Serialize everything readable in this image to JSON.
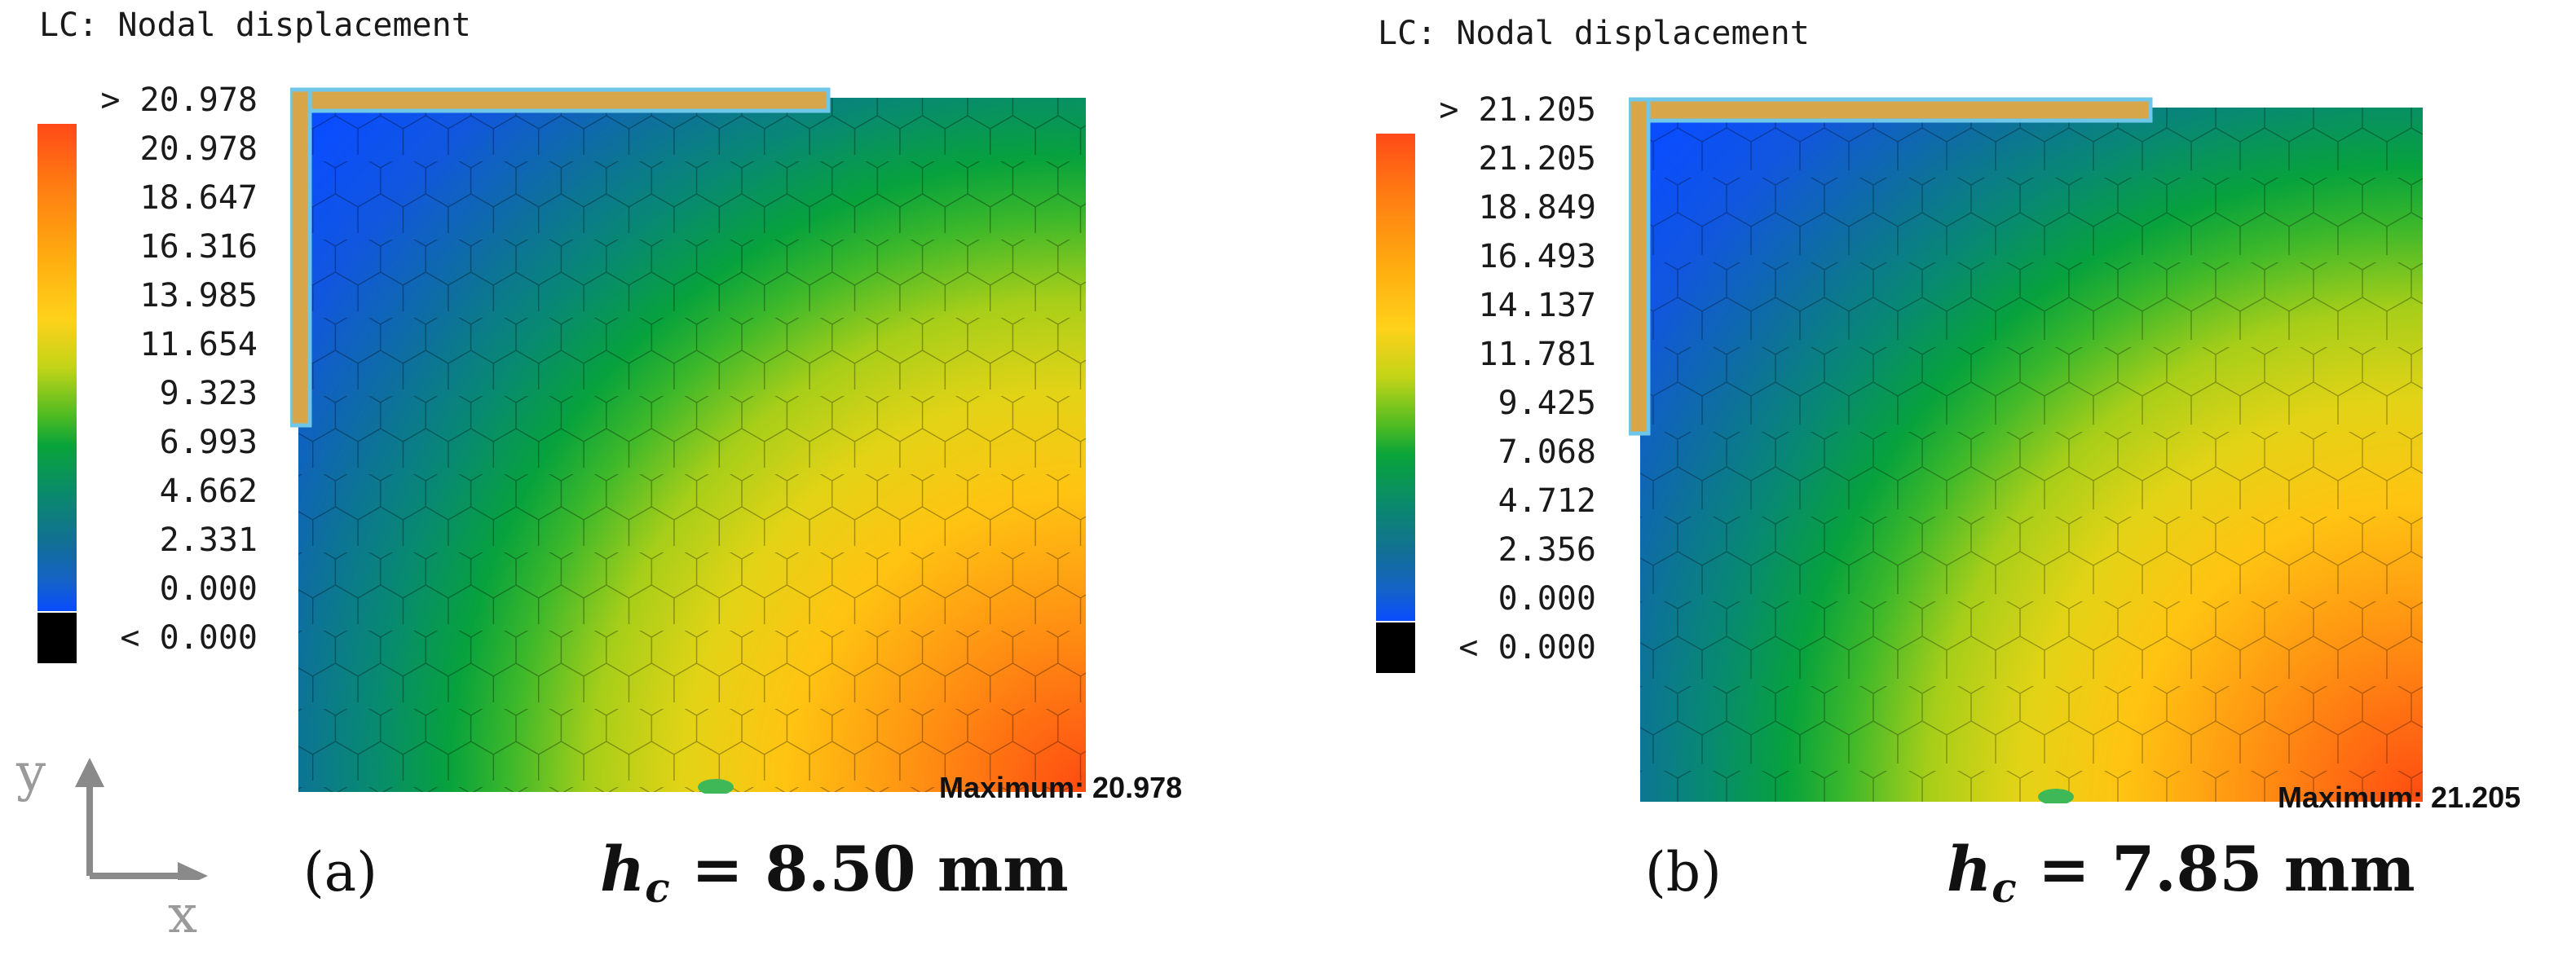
{
  "panels": [
    {
      "title": "LC: Nodal displacement",
      "legend": {
        "over": "> 20.978",
        "ticks": [
          "20.978",
          "18.647",
          "16.316",
          "13.985",
          "11.654",
          "9.323",
          "6.993",
          "4.662",
          "2.331",
          "0.000"
        ],
        "under": "< 0.000"
      },
      "max_value": 20.978,
      "maximum_label": "Maximum: 20.978",
      "caption": "(a)",
      "formula": {
        "symbol": "h",
        "subscript": "c",
        "eq": " = 8.50 mm"
      }
    },
    {
      "title": "LC: Nodal displacement",
      "legend": {
        "over": "> 21.205",
        "ticks": [
          "21.205",
          "18.849",
          "16.493",
          "14.137",
          "11.781",
          "9.425",
          "7.068",
          "4.712",
          "2.356",
          "0.000"
        ],
        "under": "< 0.000"
      },
      "max_value": 21.205,
      "maximum_label": "Maximum: 21.205",
      "caption": "(b)",
      "formula": {
        "symbol": "h",
        "subscript": "c",
        "eq": " = 7.85 mm"
      }
    }
  ],
  "axes": {
    "x": "x",
    "y": "y"
  },
  "colors": {
    "low": "#0a4dff",
    "mid": "#09a43a",
    "high_mid": "#ffd11a",
    "high": "#ff4a18",
    "under": "#000000",
    "connector": "#6ec6e8",
    "axis": "#8a8a8a"
  }
}
